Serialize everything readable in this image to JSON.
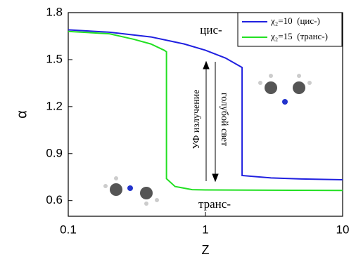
{
  "chart_data": {
    "type": "line",
    "xlabel": "Z",
    "ylabel": "α",
    "xscale": "log",
    "xlim": [
      0.1,
      10
    ],
    "xticks": [
      0.1,
      1,
      10
    ],
    "ylim": [
      0.5,
      1.8
    ],
    "yticks": [
      0.6,
      0.9,
      1.2,
      1.5,
      1.8
    ],
    "legend": "upper right",
    "series": [
      {
        "name": "χ₂=10  (цис-)",
        "color": "#2020e0",
        "x": [
          0.1,
          0.2,
          0.4,
          0.7,
          1,
          1.4,
          1.85,
          1.85,
          3,
          5,
          10
        ],
        "values": [
          1.69,
          1.675,
          1.645,
          1.6,
          1.56,
          1.51,
          1.45,
          0.76,
          0.745,
          0.738,
          0.733
        ]
      },
      {
        "name": "χ₂=15  (транс-)",
        "color": "#22e022",
        "x": [
          0.1,
          0.2,
          0.3,
          0.4,
          0.5,
          0.52,
          0.52,
          0.6,
          0.8,
          1,
          10
        ],
        "values": [
          1.68,
          1.665,
          1.63,
          1.6,
          1.56,
          1.55,
          0.74,
          0.69,
          0.67,
          0.668,
          0.665
        ]
      }
    ],
    "annotations": [
      "цис-",
      "транс-",
      "УФ излучение",
      "голубой свет"
    ]
  }
}
